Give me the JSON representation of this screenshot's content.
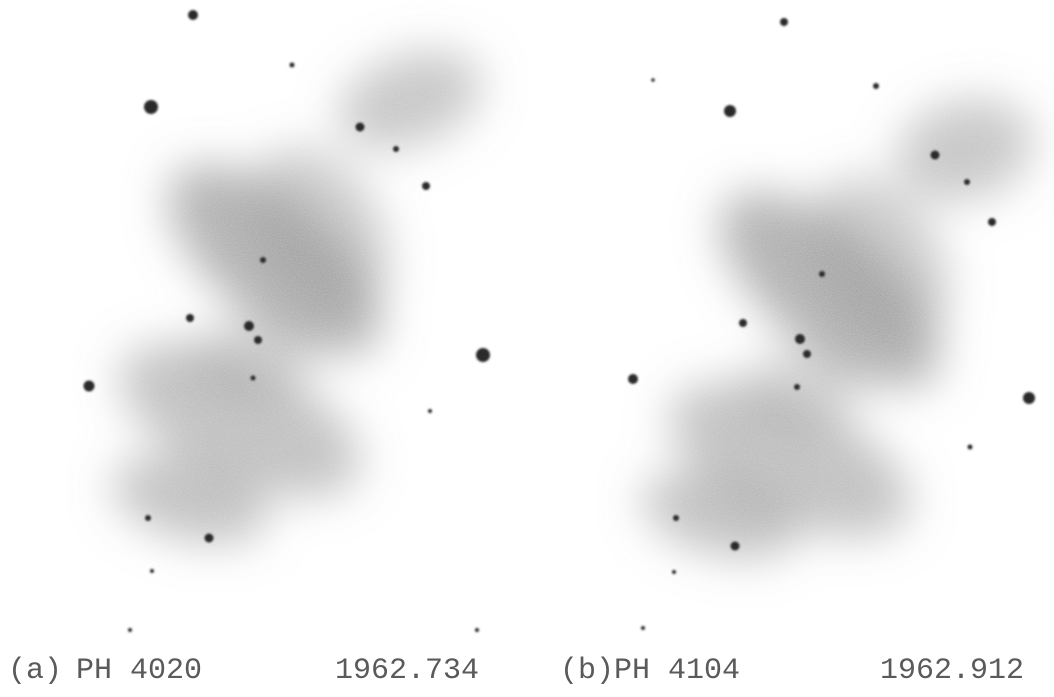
{
  "panels": [
    {
      "label": "(a)",
      "plate": "PH 4020",
      "epoch": "1962.734"
    },
    {
      "label": "(b)",
      "plate": "PH 4104",
      "epoch": "1962.912"
    }
  ]
}
